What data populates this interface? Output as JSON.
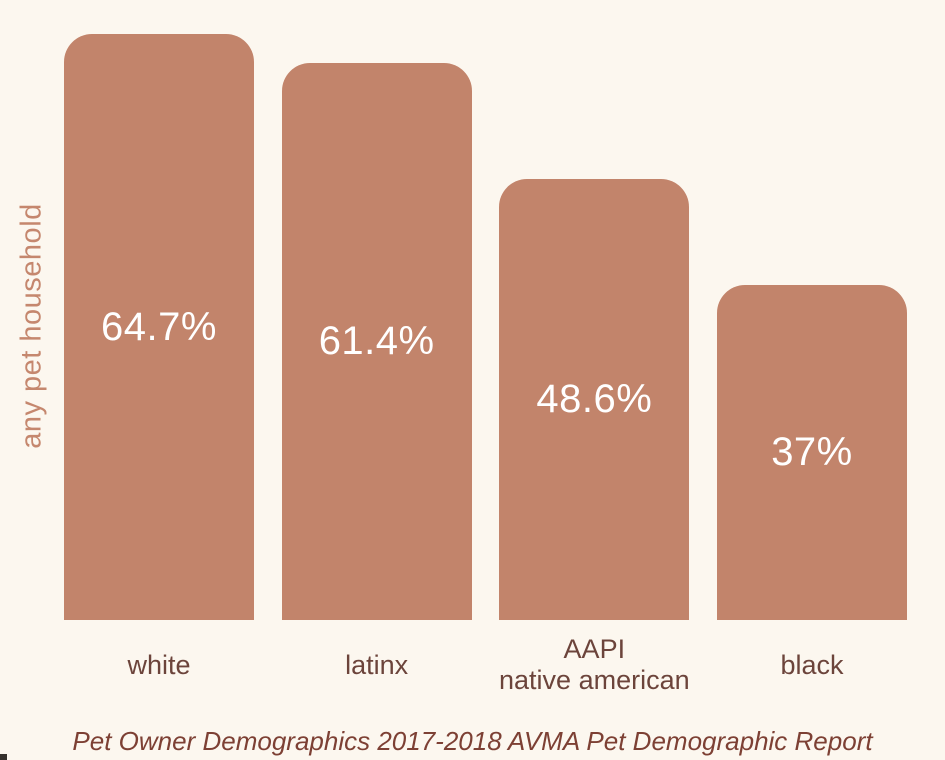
{
  "page": {
    "background_color": "#fcf7ef"
  },
  "chart_data": {
    "type": "bar",
    "categories": [
      "white",
      "latinx",
      "AAPI native american",
      "black"
    ],
    "category_lines": [
      [
        "white"
      ],
      [
        "latinx"
      ],
      [
        "AAPI",
        "native american"
      ],
      [
        "black"
      ]
    ],
    "values": [
      64.7,
      61.4,
      48.6,
      37
    ],
    "value_labels": [
      "64.7%",
      "61.4%",
      "48.6%",
      "37%"
    ],
    "title": "",
    "xlabel": "",
    "ylabel": "any pet household",
    "ylim": [
      0,
      68.4
    ],
    "grid": false,
    "legend_position": "none",
    "caption": "Pet Owner Demographics 2017-2018 AVMA Pet Demographic Report",
    "colors": {
      "bar": "#c2846b",
      "value_label": "#ffffff",
      "category_label": "#6c443b",
      "ylabel": "#c5876e",
      "caption": "#7d4034",
      "background": "#fcf7ef"
    }
  }
}
